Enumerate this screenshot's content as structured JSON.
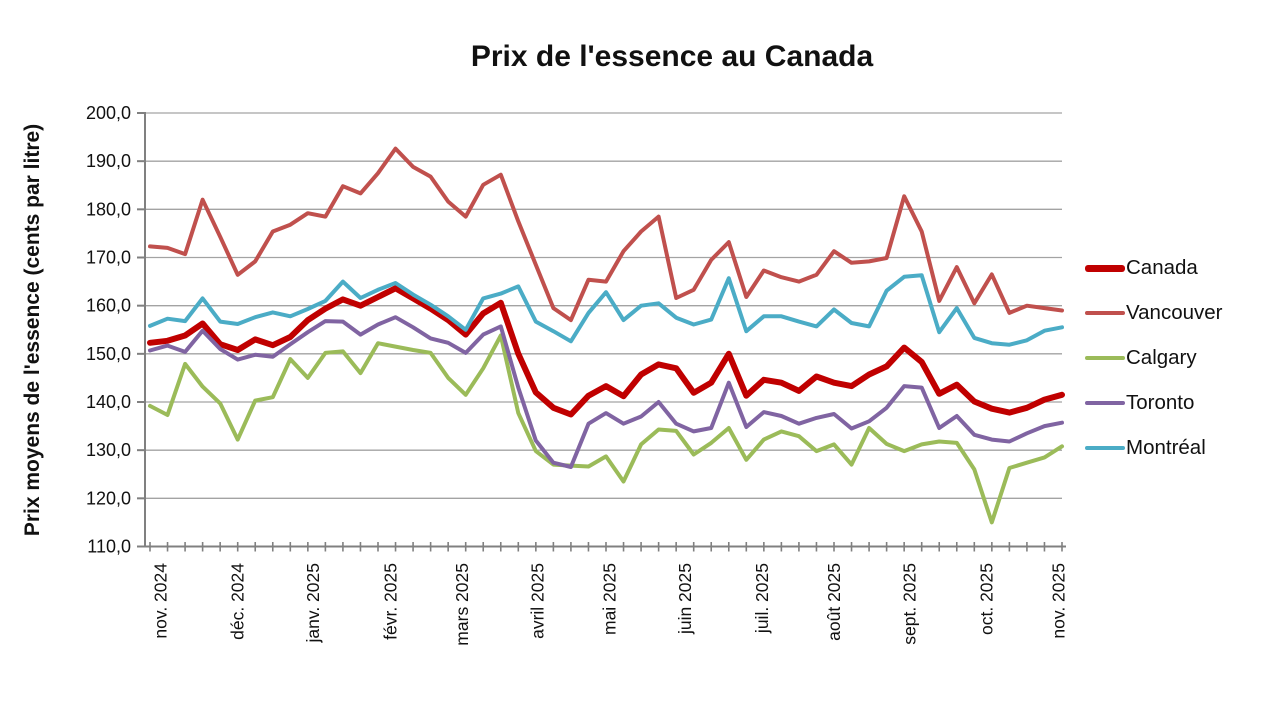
{
  "chart": {
    "title": "Prix de l'essence au Canada",
    "ylabel": "Prix moyens de l'essence (cents par litre)"
  },
  "chart_data": {
    "type": "line",
    "title": "Prix de l'essence au Canada",
    "xlabel": "",
    "ylabel": "Prix moyens de l'essence (cents par litre)",
    "ylim": [
      110,
      200
    ],
    "y_step": 10,
    "y_tick_labels": [
      "200,0",
      "190,0",
      "180,0",
      "170,0",
      "160,0",
      "150,0",
      "140,0",
      "130,0",
      "120,0",
      "110,0"
    ],
    "decimal_separator": ",",
    "grid": "horizontal",
    "legend_position": "right",
    "x_unit": "week",
    "n_points": 53,
    "months": [
      {
        "label": "nov. 2024",
        "week": 1.6
      },
      {
        "label": "déc. 2024",
        "week": 6.0
      },
      {
        "label": "janv. 2025",
        "week": 10.3
      },
      {
        "label": "févr. 2025",
        "week": 14.7
      },
      {
        "label": "mars 2025",
        "week": 18.8
      },
      {
        "label": "avril 2025",
        "week": 23.1
      },
      {
        "label": "mai 2025",
        "week": 27.2
      },
      {
        "label": "juin 2025",
        "week": 31.5
      },
      {
        "label": "juil. 2025",
        "week": 35.9
      },
      {
        "label": "août 2025",
        "week": 40.0
      },
      {
        "label": "sept. 2025",
        "week": 44.3
      },
      {
        "label": "oct. 2025",
        "week": 48.7
      },
      {
        "label": "nov. 2025",
        "week": 52.8
      }
    ],
    "series": [
      {
        "name": "Canada",
        "color": "#C00000",
        "width": 6,
        "values": [
          152.3,
          152.7,
          153.8,
          156.3,
          152.0,
          150.8,
          153.0,
          151.8,
          153.5,
          157.0,
          159.4,
          161.3,
          160.0,
          161.8,
          163.6,
          161.5,
          159.4,
          157.0,
          154.0,
          158.4,
          160.6,
          150.0,
          142.0,
          138.8,
          137.4,
          141.3,
          143.3,
          141.2,
          145.7,
          147.8,
          147.0,
          141.9,
          144.0,
          150.0,
          141.3,
          144.6,
          144.0,
          142.3,
          145.3,
          144.0,
          143.3,
          145.7,
          147.4,
          151.3,
          148.3,
          141.7,
          143.6,
          140.1,
          138.6,
          137.8,
          138.8,
          140.5,
          141.5
        ]
      },
      {
        "name": "Vancouver",
        "color": "#C0504D",
        "width": 4,
        "values": [
          172.3,
          172.0,
          170.7,
          182.0,
          174.3,
          166.4,
          169.2,
          175.4,
          176.8,
          179.2,
          178.5,
          184.8,
          183.3,
          187.5,
          192.6,
          188.8,
          186.8,
          181.6,
          178.5,
          185.1,
          187.2,
          177.5,
          168.5,
          159.5,
          157.0,
          165.4,
          165.0,
          171.3,
          175.4,
          178.5,
          161.6,
          163.3,
          169.5,
          173.2,
          161.8,
          167.3,
          165.9,
          165.0,
          166.4,
          171.3,
          168.9,
          169.2,
          169.9,
          182.7,
          175.4,
          161.0,
          168.0,
          160.5,
          166.5,
          158.5,
          160.0,
          159.5,
          159.0
        ]
      },
      {
        "name": "Calgary",
        "color": "#9BBB59",
        "width": 4,
        "values": [
          139.2,
          137.3,
          147.9,
          143.2,
          139.7,
          132.2,
          140.3,
          141.0,
          148.9,
          145.0,
          150.2,
          150.5,
          146.0,
          152.2,
          151.5,
          150.8,
          150.2,
          145.0,
          141.5,
          147.0,
          153.8,
          137.7,
          129.8,
          127.0,
          126.8,
          126.6,
          128.7,
          123.5,
          131.2,
          134.3,
          134.0,
          129.1,
          131.5,
          134.6,
          128.0,
          132.2,
          133.9,
          132.9,
          129.8,
          131.2,
          127.0,
          134.6,
          131.3,
          129.8,
          131.2,
          131.8,
          131.5,
          126.0,
          115.0,
          126.3,
          127.4,
          128.5,
          130.8
        ]
      },
      {
        "name": "Toronto",
        "color": "#8064A2",
        "width": 4,
        "values": [
          150.7,
          151.7,
          150.4,
          154.8,
          151.0,
          148.8,
          149.8,
          149.4,
          152.0,
          154.5,
          156.8,
          156.7,
          154.0,
          156.1,
          157.6,
          155.5,
          153.2,
          152.3,
          150.2,
          154.0,
          155.7,
          143.0,
          132.0,
          127.4,
          126.5,
          135.5,
          137.7,
          135.5,
          137.0,
          140.0,
          135.5,
          133.9,
          134.6,
          144.0,
          134.8,
          137.9,
          137.1,
          135.5,
          136.7,
          137.5,
          134.5,
          136.0,
          138.8,
          143.3,
          143.0,
          134.6,
          137.1,
          133.2,
          132.2,
          131.8,
          133.5,
          135.0,
          135.7
        ]
      },
      {
        "name": "Montréal",
        "color": "#4BACC6",
        "width": 4,
        "values": [
          155.8,
          157.3,
          156.8,
          161.5,
          156.7,
          156.2,
          157.6,
          158.6,
          157.8,
          159.3,
          161.0,
          165.0,
          161.6,
          163.3,
          164.7,
          162.3,
          160.2,
          157.8,
          155.0,
          161.5,
          162.5,
          164.0,
          156.7,
          154.7,
          152.6,
          158.5,
          162.8,
          157.0,
          160.0,
          160.5,
          157.5,
          156.1,
          157.1,
          165.7,
          154.7,
          157.8,
          157.8,
          156.7,
          155.7,
          159.2,
          156.4,
          155.7,
          163.1,
          166.0,
          166.3,
          154.5,
          159.5,
          153.3,
          152.2,
          151.9,
          152.8,
          154.8,
          155.5
        ]
      }
    ],
    "legend_y_centers": [
      268,
      313,
      358,
      403,
      448
    ],
    "colors": {
      "grid": "#a3a3a3",
      "axis": "#808080",
      "text": "#111111"
    }
  }
}
